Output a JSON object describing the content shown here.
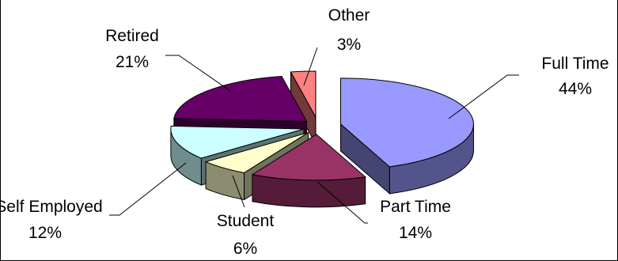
{
  "chart_data": {
    "type": "pie",
    "style": "3d-exploded",
    "slices": [
      {
        "label": "Full Time",
        "value": 44,
        "value_label": "44%",
        "color": "#9999ff"
      },
      {
        "label": "Part Time",
        "value": 14,
        "value_label": "14%",
        "color": "#993366"
      },
      {
        "label": "Student",
        "value": 6,
        "value_label": "6%",
        "color": "#ffffcc"
      },
      {
        "label": "Self Employed",
        "value": 12,
        "value_label": "12%",
        "color": "#ccffff"
      },
      {
        "label": "Retired",
        "value": 21,
        "value_label": "21%",
        "color": "#660066"
      },
      {
        "label": "Other",
        "value": 3,
        "value_label": "3%",
        "color": "#ff8080"
      }
    ],
    "legend": "none",
    "data_labels": "category-and-percent"
  }
}
